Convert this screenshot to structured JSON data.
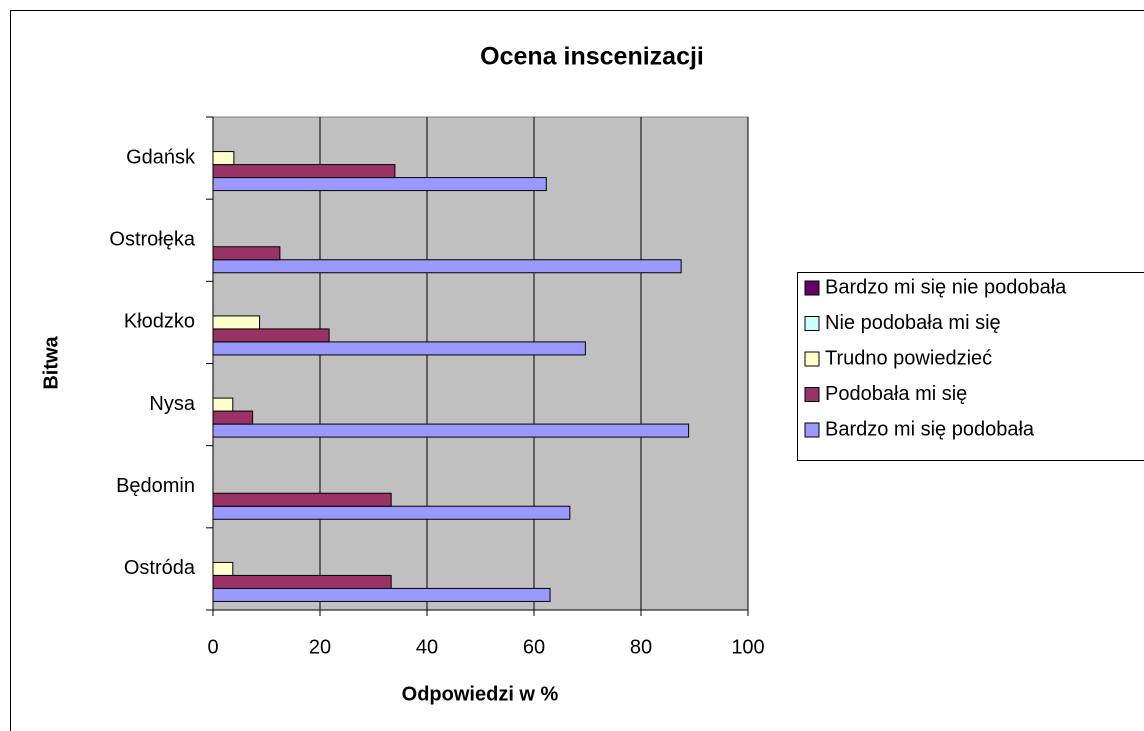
{
  "chart_data": {
    "type": "bar",
    "orientation": "horizontal",
    "title": "Ocena inscenizacji",
    "x_label": "Odpowiedzi w %",
    "y_label": "Bitwa",
    "categories": [
      "Gdańsk",
      "Ostrołęka",
      "Kłodzko",
      "Nysa",
      "Będomin",
      "Ostróda"
    ],
    "series": [
      {
        "name": "Bardzo mi się podobała",
        "color": "#9999ff",
        "values": [
          62.3,
          87.5,
          69.6,
          88.9,
          66.7,
          63
        ]
      },
      {
        "name": "Podobała mi się",
        "color": "#993366",
        "values": [
          34,
          12.5,
          21.7,
          7.4,
          33.3,
          33.3
        ]
      },
      {
        "name": "Trudno powiedzieć",
        "color": "#ffffcc",
        "values": [
          3.9,
          0,
          8.7,
          3.7,
          0,
          3.7
        ]
      },
      {
        "name": "Nie podobała mi się",
        "color": "#ccffff",
        "values": [
          0,
          0,
          0,
          0,
          0,
          0
        ]
      },
      {
        "name": "Bardzo mi się nie podobała",
        "color": "#660066",
        "values": [
          0,
          0,
          0,
          0,
          0,
          0
        ]
      }
    ],
    "xlim": [
      0,
      100
    ],
    "xticks": [
      0,
      20,
      40,
      60,
      80,
      100
    ],
    "grid": true,
    "legend": "right"
  }
}
